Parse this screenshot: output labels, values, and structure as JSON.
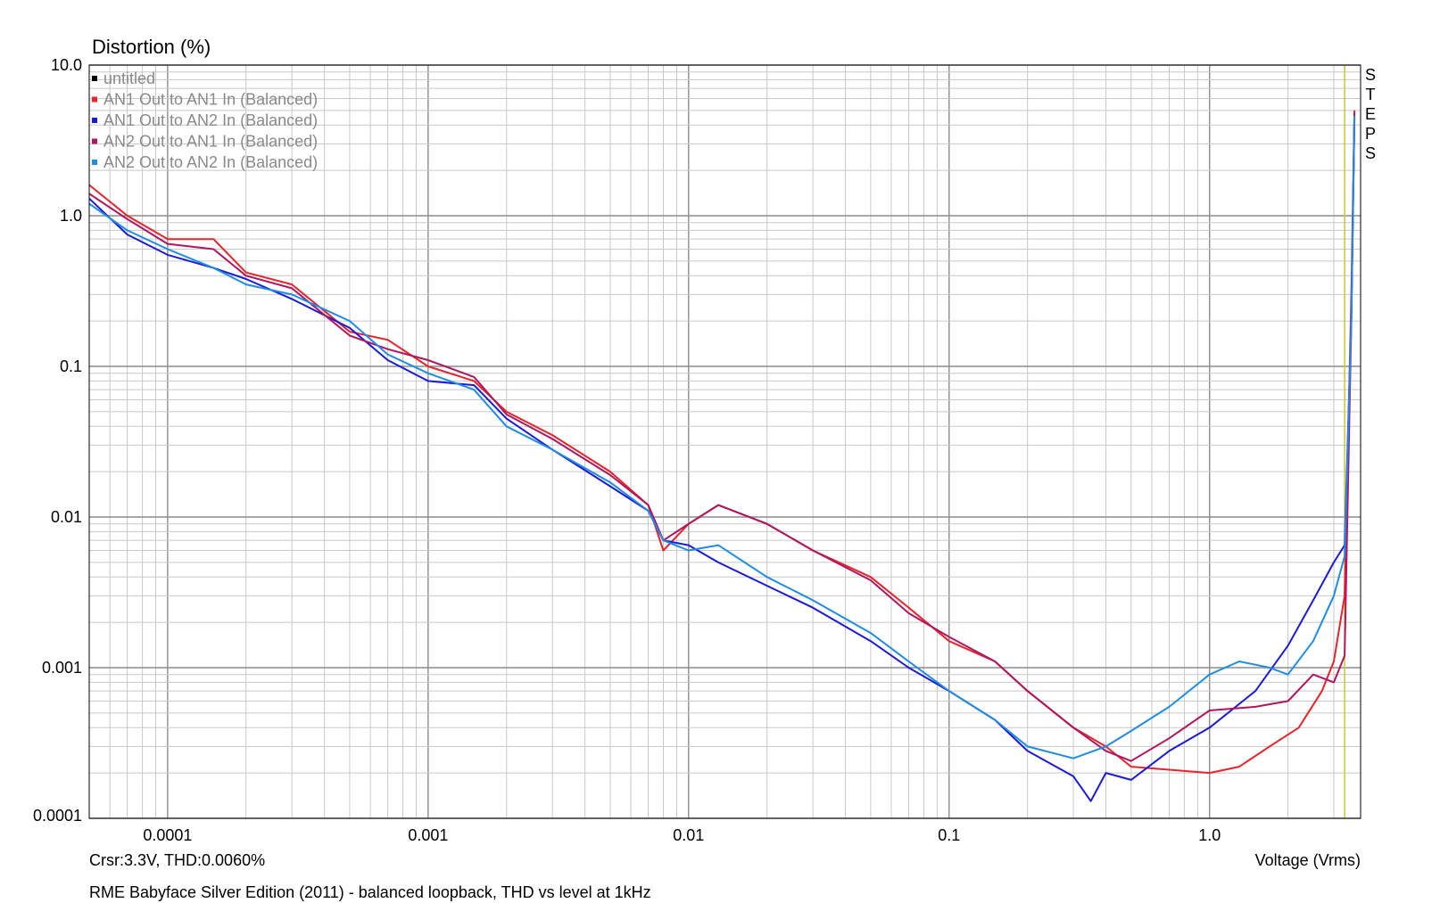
{
  "chart_data": {
    "type": "line",
    "ylabel": "Distortion (%)",
    "xlabel": "Voltage (Vrms)",
    "caption": "RME Babyface Silver Edition (2011) - balanced loopback, THD vs level at 1kHz",
    "cursor_readout": "Crsr:3.3V, THD:0.0060%",
    "side_label": "STEPS",
    "x_scale": "log",
    "y_scale": "log",
    "xlim": [
      5e-05,
      3.8
    ],
    "ylim": [
      0.0001,
      10
    ],
    "x_ticks": [
      {
        "value": 0.0001,
        "label": "0.0001"
      },
      {
        "value": 0.001,
        "label": "0.001"
      },
      {
        "value": 0.01,
        "label": "0.01"
      },
      {
        "value": 0.1,
        "label": "0.1"
      },
      {
        "value": 1.0,
        "label": "1.0"
      }
    ],
    "y_ticks": [
      {
        "value": 10,
        "label": "10.0"
      },
      {
        "value": 1,
        "label": "1.0"
      },
      {
        "value": 0.1,
        "label": "0.1"
      },
      {
        "value": 0.01,
        "label": "0.01"
      },
      {
        "value": 0.001,
        "label": "0.001"
      },
      {
        "value": 0.0001,
        "label": "0.0001"
      }
    ],
    "grid": true,
    "legend_position": "top-left",
    "cursor_x": 3.3,
    "cursor_color": "#c8c832",
    "series": [
      {
        "name": "untitled",
        "color": "#000000",
        "x": [],
        "y": []
      },
      {
        "name": "AN1 Out to AN1 In (Balanced)",
        "color": "#e8232a",
        "x": [
          5e-05,
          7e-05,
          0.0001,
          0.00015,
          0.0002,
          0.0003,
          0.0005,
          0.0007,
          0.001,
          0.0015,
          0.002,
          0.003,
          0.005,
          0.007,
          0.008,
          0.01,
          0.013,
          0.02,
          0.03,
          0.05,
          0.07,
          0.1,
          0.15,
          0.2,
          0.3,
          0.4,
          0.5,
          0.7,
          1.0,
          1.3,
          1.7,
          2.2,
          2.7,
          3.0,
          3.3,
          3.5,
          3.6
        ],
        "y": [
          1.6,
          1.0,
          0.7,
          0.7,
          0.42,
          0.35,
          0.17,
          0.15,
          0.1,
          0.08,
          0.05,
          0.035,
          0.02,
          0.012,
          0.006,
          0.009,
          0.012,
          0.009,
          0.006,
          0.004,
          0.0025,
          0.0015,
          0.0011,
          0.0007,
          0.0004,
          0.0003,
          0.00022,
          0.00021,
          0.0002,
          0.00022,
          0.0003,
          0.0004,
          0.0007,
          0.0011,
          0.003,
          0.3,
          5.0
        ]
      },
      {
        "name": "AN1 Out to AN2 In (Balanced)",
        "color": "#1a1adc",
        "x": [
          5e-05,
          7e-05,
          0.0001,
          0.00015,
          0.0002,
          0.0003,
          0.0005,
          0.0007,
          0.001,
          0.0015,
          0.002,
          0.003,
          0.005,
          0.007,
          0.008,
          0.01,
          0.013,
          0.02,
          0.03,
          0.05,
          0.07,
          0.1,
          0.15,
          0.2,
          0.3,
          0.35,
          0.4,
          0.5,
          0.7,
          1.0,
          1.5,
          2.0,
          2.5,
          3.0,
          3.3,
          3.5,
          3.6
        ],
        "y": [
          1.3,
          0.75,
          0.55,
          0.45,
          0.38,
          0.28,
          0.18,
          0.11,
          0.08,
          0.075,
          0.045,
          0.028,
          0.016,
          0.011,
          0.007,
          0.0065,
          0.005,
          0.0035,
          0.0025,
          0.0015,
          0.001,
          0.0007,
          0.00045,
          0.00028,
          0.00019,
          0.00013,
          0.0002,
          0.00018,
          0.00028,
          0.0004,
          0.0007,
          0.0014,
          0.0028,
          0.005,
          0.0065,
          0.2,
          4.5
        ]
      },
      {
        "name": "AN2 Out to AN1 In (Balanced)",
        "color": "#b0155f",
        "x": [
          5e-05,
          7e-05,
          0.0001,
          0.00015,
          0.0002,
          0.0003,
          0.0005,
          0.0007,
          0.001,
          0.0015,
          0.002,
          0.003,
          0.005,
          0.007,
          0.008,
          0.01,
          0.013,
          0.02,
          0.03,
          0.05,
          0.07,
          0.1,
          0.15,
          0.2,
          0.3,
          0.4,
          0.5,
          0.7,
          1.0,
          1.5,
          2.0,
          2.5,
          3.0,
          3.3,
          3.5,
          3.6
        ],
        "y": [
          1.4,
          0.95,
          0.65,
          0.6,
          0.4,
          0.33,
          0.16,
          0.13,
          0.11,
          0.085,
          0.048,
          0.033,
          0.019,
          0.012,
          0.007,
          0.009,
          0.012,
          0.009,
          0.006,
          0.0038,
          0.0023,
          0.0016,
          0.0011,
          0.0007,
          0.0004,
          0.00028,
          0.00024,
          0.00034,
          0.00052,
          0.00055,
          0.0006,
          0.0009,
          0.0008,
          0.0012,
          0.2,
          4.8
        ]
      },
      {
        "name": "AN2 Out to AN2 In (Balanced)",
        "color": "#1e8ce6",
        "x": [
          5e-05,
          7e-05,
          0.0001,
          0.00015,
          0.0002,
          0.0003,
          0.0005,
          0.0007,
          0.001,
          0.0015,
          0.002,
          0.003,
          0.005,
          0.007,
          0.008,
          0.01,
          0.013,
          0.02,
          0.03,
          0.05,
          0.07,
          0.1,
          0.15,
          0.2,
          0.3,
          0.4,
          0.5,
          0.7,
          1.0,
          1.3,
          1.7,
          2.0,
          2.5,
          3.0,
          3.3,
          3.5,
          3.6
        ],
        "y": [
          1.2,
          0.8,
          0.6,
          0.45,
          0.35,
          0.3,
          0.2,
          0.12,
          0.09,
          0.07,
          0.04,
          0.028,
          0.017,
          0.011,
          0.007,
          0.006,
          0.0065,
          0.004,
          0.0028,
          0.0017,
          0.0011,
          0.0007,
          0.00045,
          0.0003,
          0.00025,
          0.0003,
          0.00038,
          0.00055,
          0.0009,
          0.0011,
          0.001,
          0.0009,
          0.0015,
          0.003,
          0.0055,
          0.2,
          4.6
        ]
      }
    ]
  }
}
